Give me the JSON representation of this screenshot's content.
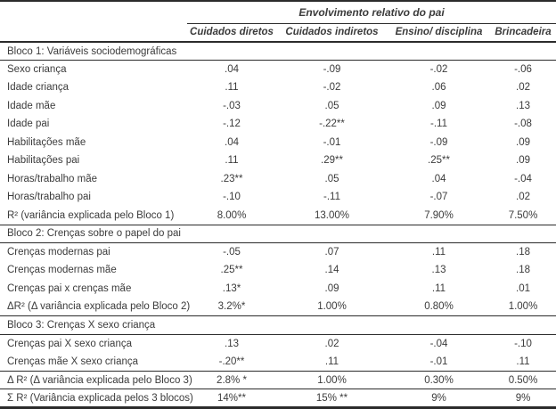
{
  "page": {
    "background": "#ffffff",
    "text_color": "#3b3b3b",
    "line_color": "#2b2b2b"
  },
  "table": {
    "spanner": "Envolvimento relativo do pai",
    "columns": [
      "Cuidados diretos",
      "Cuidados indiretos",
      "Ensino/ disciplina",
      "Brincadeira"
    ],
    "blocks": [
      {
        "header": "Bloco 1: Variáveis sociodemográficas",
        "rows": [
          {
            "label": "Sexo criança",
            "values": [
              ".04",
              "-.09",
              "-.02",
              "-.06"
            ]
          },
          {
            "label": "Idade criança",
            "values": [
              ".11",
              "-.02",
              ".06",
              ".02"
            ]
          },
          {
            "label": "Idade mãe",
            "values": [
              "-.03",
              ".05",
              ".09",
              ".13"
            ]
          },
          {
            "label": "Idade pai",
            "values": [
              "-.12",
              "-.22**",
              "-.11",
              "-.08"
            ]
          },
          {
            "label": "Habilitações mãe",
            "values": [
              ".04",
              "-.01",
              "-.09",
              ".09"
            ]
          },
          {
            "label": "Habilitações pai",
            "values": [
              ".11",
              ".29**",
              ".25**",
              ".09"
            ]
          },
          {
            "label": "Horas/trabalho mãe",
            "values": [
              ".23**",
              ".05",
              ".04",
              "-.04"
            ]
          },
          {
            "label": "Horas/trabalho pai",
            "values": [
              "-.10",
              "-.11",
              "-.07",
              ".02"
            ]
          },
          {
            "label": "R² (variância explicada pelo Bloco 1)",
            "values": [
              "8.00%",
              "13.00%",
              "7.90%",
              "7.50%"
            ]
          }
        ]
      },
      {
        "header": "Bloco 2: Crenças sobre o papel do pai",
        "rows": [
          {
            "label": "Crenças modernas pai",
            "values": [
              "-.05",
              ".07",
              ".11",
              ".18"
            ]
          },
          {
            "label": "Crenças modernas mãe",
            "values": [
              ".25**",
              ".14",
              ".13",
              ".18"
            ]
          },
          {
            "label": "Crenças pai x crenças mãe",
            "values": [
              ".13*",
              ".09",
              ".11",
              ".01"
            ]
          },
          {
            "label": "ΔR² (Δ variância explicada pelo Bloco 2)",
            "values": [
              "3.2%*",
              "1.00%",
              "0.80%",
              "1.00%"
            ]
          }
        ]
      },
      {
        "header": "Bloco 3: Crenças X sexo criança",
        "rows": [
          {
            "label": "Crenças pai X sexo criança",
            "values": [
              ".13",
              ".02",
              "-.04",
              "-.10"
            ]
          },
          {
            "label": "Crenças mãe X sexo criança",
            "values": [
              "-.20**",
              ".11",
              "-.01",
              ".11"
            ]
          },
          {
            "label": "Δ R² (Δ variância explicada pelo Bloco 3)",
            "values": [
              "2.8% *",
              "1.00%",
              "0.30%",
              "0.50%"
            ],
            "rule_above": true
          },
          {
            "label": "Σ R² (Variância explicada pelos 3 blocos)",
            "values": [
              "14%**",
              "15% **",
              "9%",
              "9%"
            ],
            "rule_above": true
          }
        ]
      }
    ]
  }
}
